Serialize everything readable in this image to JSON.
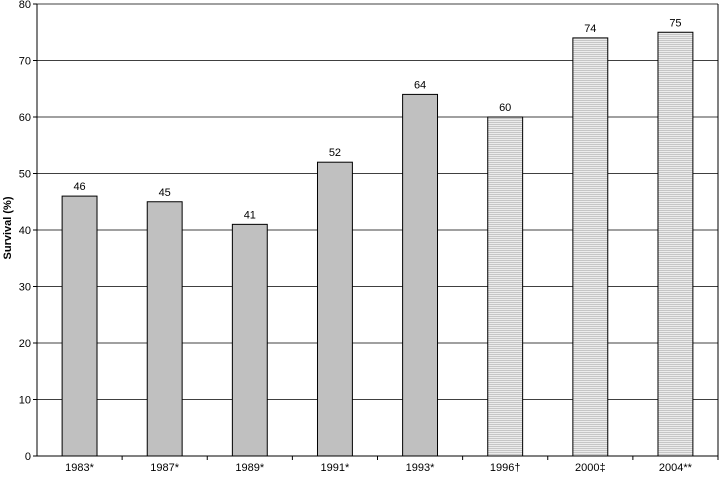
{
  "chart_data": {
    "type": "bar",
    "title": "",
    "xlabel": "",
    "ylabel": "Survival (%)",
    "ylim": [
      0,
      80
    ],
    "yticks": [
      0,
      10,
      20,
      30,
      40,
      50,
      60,
      70,
      80
    ],
    "grid": "horizontal",
    "legend": "none",
    "categories": [
      "1983*",
      "1987*",
      "1989*",
      "1991*",
      "1993*",
      "1996†",
      "2000‡",
      "2004**"
    ],
    "values": [
      46,
      45,
      41,
      52,
      64,
      60,
      74,
      75
    ],
    "bar_fill": [
      "solid",
      "solid",
      "solid",
      "solid",
      "solid",
      "striped",
      "striped",
      "striped"
    ],
    "colors": {
      "solid": "#c0c0c0",
      "striped_bg": "#ececec",
      "striped_line": "#bdbdbd",
      "grid": "#000000",
      "outline": "#000000"
    }
  }
}
